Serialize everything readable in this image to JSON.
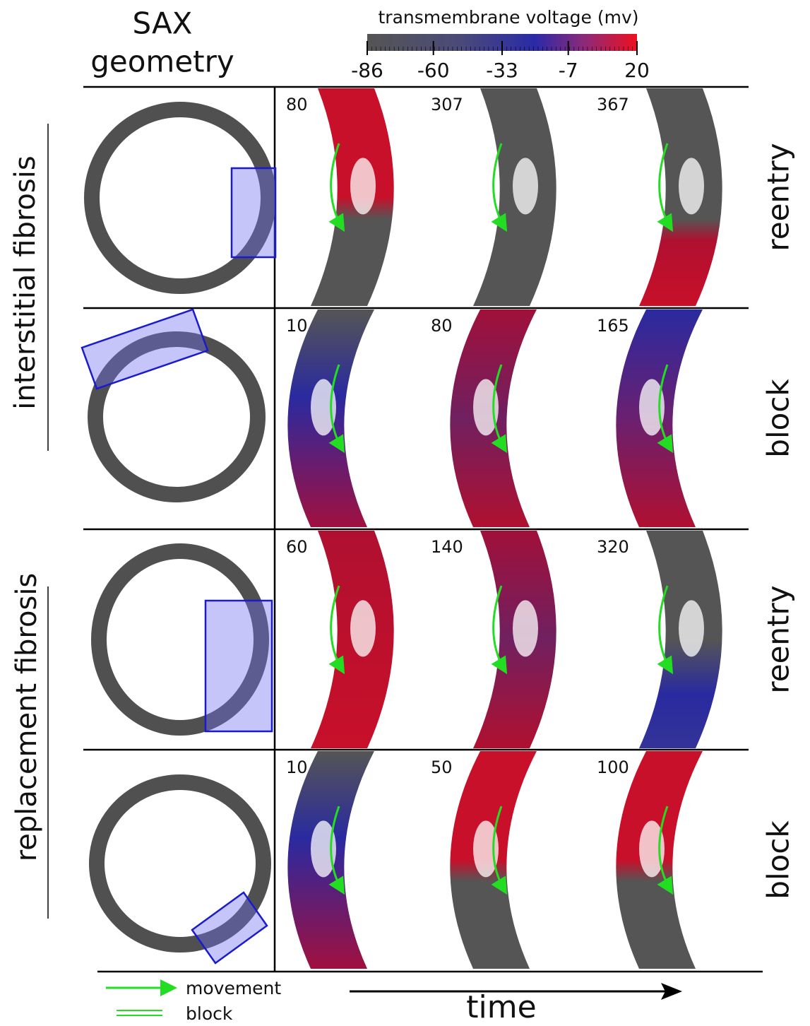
{
  "colorbar": {
    "title": "transmembrane voltage (mv)",
    "range": [
      -86,
      20
    ],
    "ticks": [
      -86,
      -60,
      -33,
      -7,
      20
    ]
  },
  "column_header": [
    "SAX",
    "geometry"
  ],
  "groups": [
    "interstitial fibrosis",
    "replacement fibrosis"
  ],
  "rows": [
    {
      "label": "reentry",
      "times": [
        "80",
        "307",
        "367"
      ]
    },
    {
      "label": "block",
      "times": [
        "10",
        "80",
        "165"
      ]
    },
    {
      "label": "reentry",
      "times": [
        "60",
        "140",
        "320"
      ]
    },
    {
      "label": "block",
      "times": [
        "10",
        "50",
        "100"
      ]
    }
  ],
  "legend": [
    "movement",
    "block"
  ],
  "time_label": "time"
}
